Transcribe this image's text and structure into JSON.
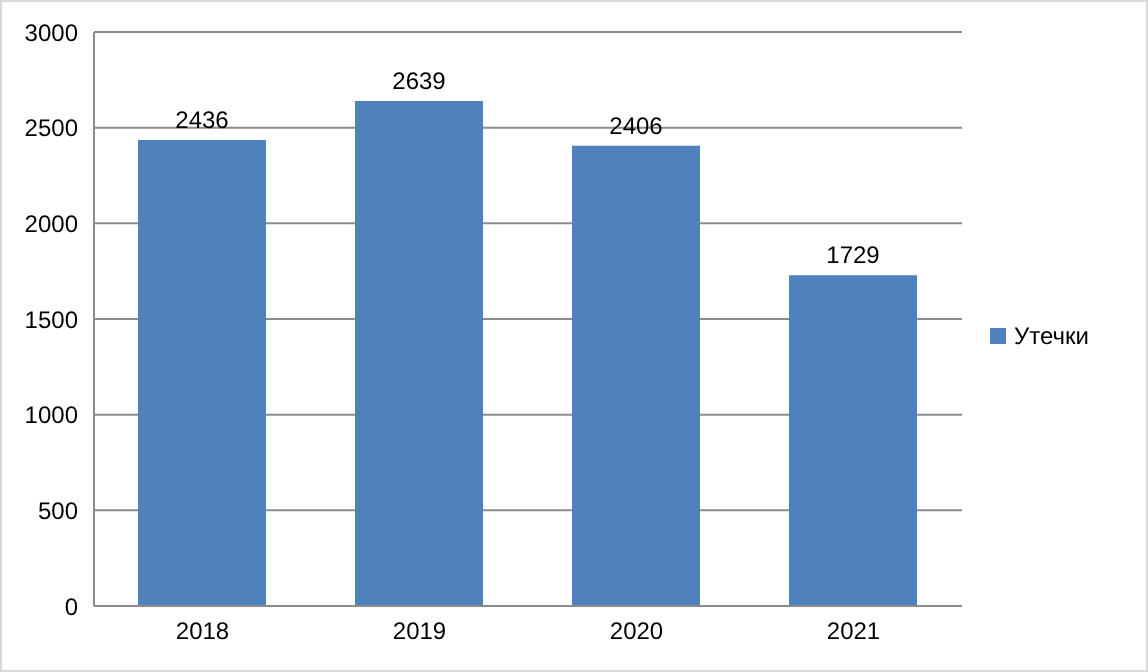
{
  "chart_data": {
    "type": "bar",
    "categories": [
      "2018",
      "2019",
      "2020",
      "2021"
    ],
    "series": [
      {
        "name": "Утечки",
        "color": "#4f81bd",
        "values": [
          2436,
          2639,
          2406,
          1729
        ]
      }
    ],
    "ylim": [
      0,
      3000
    ],
    "yticks": [
      0,
      500,
      1000,
      1500,
      2000,
      2500,
      3000
    ],
    "grid": "y",
    "legend": "right",
    "data_labels": true
  }
}
